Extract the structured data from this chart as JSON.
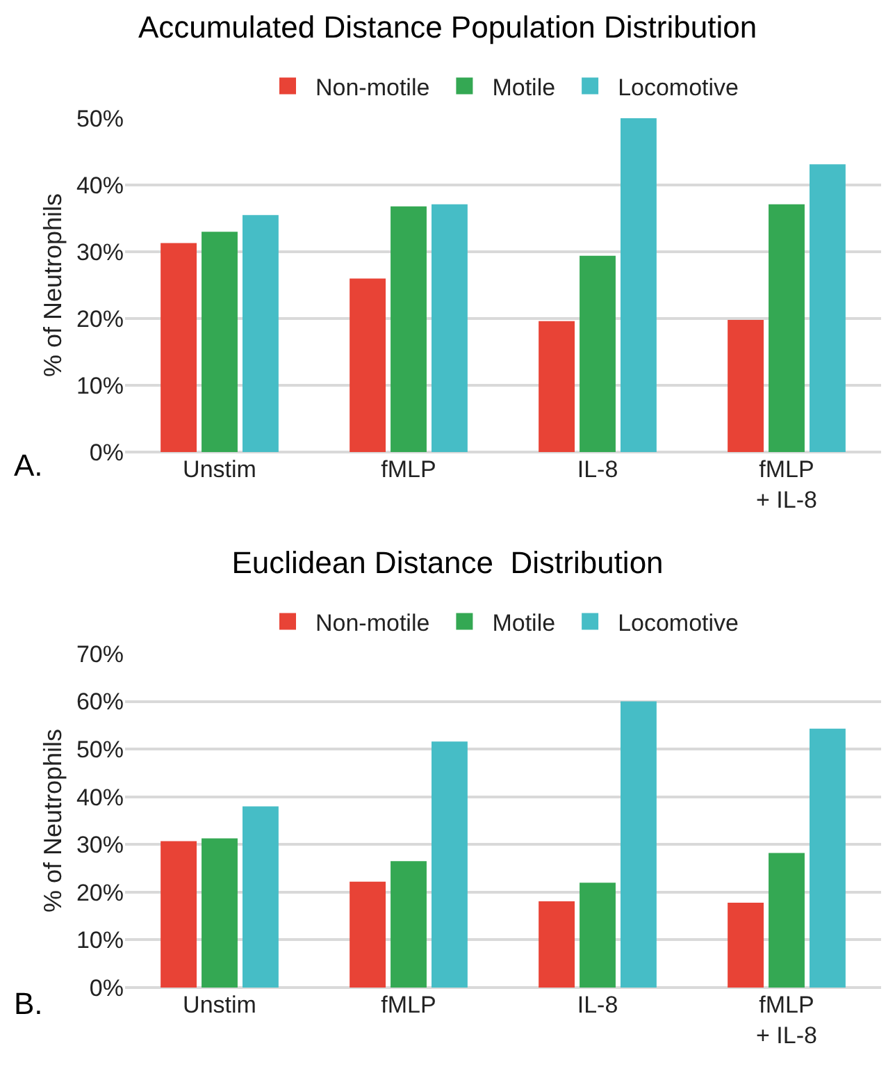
{
  "chart_data": [
    {
      "type": "bar",
      "title": "Accumulated Distance Population Distribution",
      "ylabel": "% of Neutrophils",
      "annotations": [
        "A."
      ],
      "categories": [
        "Unstim",
        "fMLP",
        "IL-8",
        "fMLP\n+ IL-8"
      ],
      "series": [
        {
          "name": "Non-motile",
          "color": "#e84336",
          "values": [
            31.3,
            26.0,
            19.6,
            19.8
          ]
        },
        {
          "name": "Motile",
          "color": "#34a853",
          "values": [
            33.0,
            36.8,
            29.4,
            37.1
          ]
        },
        {
          "name": "Locomotive",
          "color": "#46bdc6",
          "values": [
            35.5,
            37.1,
            50.0,
            43.1
          ]
        }
      ],
      "ylim": [
        0,
        50
      ],
      "yticks": [
        {
          "value": 0,
          "label": "0%"
        },
        {
          "value": 10,
          "label": "10%"
        },
        {
          "value": 20,
          "label": "20%"
        },
        {
          "value": 30,
          "label": "30%"
        },
        {
          "value": 40,
          "label": "40%"
        },
        {
          "value": 50,
          "label": "50%"
        }
      ],
      "grid": "y",
      "legend": "top"
    },
    {
      "type": "bar",
      "title": "Euclidean Distance  Distribution",
      "ylabel": "% of Neutrophils",
      "annotations": [
        "B."
      ],
      "categories": [
        "Unstim",
        "fMLP",
        "IL-8",
        "fMLP\n+ IL-8"
      ],
      "series": [
        {
          "name": "Non-motile",
          "color": "#e84336",
          "values": [
            30.7,
            22.2,
            18.1,
            17.8
          ]
        },
        {
          "name": "Motile",
          "color": "#34a853",
          "values": [
            31.3,
            26.5,
            22.0,
            28.2
          ]
        },
        {
          "name": "Locomotive",
          "color": "#46bdc6",
          "values": [
            38.0,
            51.6,
            60.0,
            54.3
          ]
        }
      ],
      "ylim": [
        0,
        70
      ],
      "yticks": [
        {
          "value": 0,
          "label": "0%"
        },
        {
          "value": 10,
          "label": "10%"
        },
        {
          "value": 20,
          "label": "20%"
        },
        {
          "value": 30,
          "label": "30%"
        },
        {
          "value": 40,
          "label": "40%"
        },
        {
          "value": 50,
          "label": "50%"
        },
        {
          "value": 60,
          "label": "60%"
        },
        {
          "value": 70,
          "label": "70%"
        }
      ],
      "grid": "y",
      "legend": "top"
    }
  ]
}
